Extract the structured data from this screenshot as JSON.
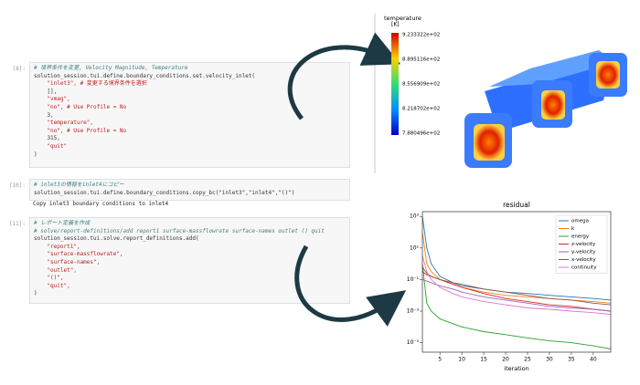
{
  "notebook": {
    "cells": [
      {
        "prompt": "[8]:",
        "lines": [
          "# 境界条件を変更, Velocity Magnitude, Temperature",
          "solution_session.tui.define.boundary_conditions.set.velocity_inlet(",
          "    \"inlet3\", # 変更する境界条件を選択",
          "    [],",
          "    \"vmag\",",
          "    \"no\", # Use Profile = No",
          "    3,",
          "    \"temperature\",",
          "    \"no\", # Use Profile = No",
          "    315,",
          "    \"quit\"",
          ")"
        ]
      },
      {
        "prompt": "[10]:",
        "lines": [
          "# inlet3の情報をinlet4にコピー",
          "solution_session.tui.define.boundary_conditions.copy_bc(\"inlet3\",\"inlet4\",\"()\")"
        ],
        "output": "Copy inlet3 boundary conditions to inlet4"
      },
      {
        "prompt": "[11]:",
        "lines": [
          "# レポート定義を作成",
          "# solve/report-definitions/add report1 surface-massflowrate surface-names outlet () quit",
          "solution_session.tui.solve.report_definitions.add(",
          "    \"report1\",",
          "    \"surface-massflowrate\",",
          "    \"surface-names\",",
          "    \"outlet\",",
          "    \"()\",",
          "    \"quit\",",
          ")"
        ]
      }
    ]
  },
  "render": {
    "colorbar_title": "temperature",
    "colorbar_unit": "[K]",
    "colorbar_labels": [
      "9.233322e+02",
      "8.895116e+02",
      "8.556909e+02",
      "8.218702e+02",
      "7.880496e+02"
    ]
  },
  "chart_data": {
    "type": "line",
    "title": "residual",
    "x_label": "iteration",
    "yscale": "log",
    "x": [
      1,
      2,
      3,
      5,
      8,
      10,
      15,
      20,
      25,
      30,
      35,
      40,
      44
    ],
    "xlim": [
      1,
      44
    ],
    "xticks": [
      5,
      10,
      15,
      20,
      25,
      30,
      35,
      40
    ],
    "ylim": [
      2.5e-06,
      2000.0
    ],
    "yticks": [
      {
        "value": 1000,
        "label": "10³"
      },
      {
        "value": 10,
        "label": "10¹"
      },
      {
        "value": 0.1,
        "label": "10⁻¹"
      },
      {
        "value": 0.001,
        "label": "10⁻³"
      },
      {
        "value": 1e-05,
        "label": "10⁻⁵"
      }
    ],
    "legend": "upper right",
    "series": [
      {
        "name": "omega",
        "color": "#1f77b4",
        "values": [
          1000,
          10,
          1,
          0.16,
          0.063,
          0.04,
          0.025,
          0.016,
          0.013,
          0.01,
          0.008,
          0.0063,
          0.005
        ]
      },
      {
        "name": "k",
        "color": "#ff7f0e",
        "values": [
          100,
          1,
          0.32,
          0.1,
          0.05,
          0.032,
          0.016,
          0.01,
          0.008,
          0.0063,
          0.005,
          0.004,
          0.0032
        ]
      },
      {
        "name": "energy",
        "color": "#2ca02c",
        "values": [
          1,
          0.0032,
          0.001,
          0.00032,
          0.00016,
          0.0001,
          5e-05,
          3.2e-05,
          2e-05,
          1.3e-05,
          1e-05,
          6.3e-06,
          4e-06
        ]
      },
      {
        "name": "z-velocity",
        "color": "#d62728",
        "values": [
          0.32,
          0.2,
          0.16,
          0.1,
          0.05,
          0.032,
          0.013,
          0.0063,
          0.004,
          0.0025,
          0.002,
          0.0013,
          0.001
        ]
      },
      {
        "name": "y-velocity",
        "color": "#9467bd",
        "values": [
          0.1,
          0.08,
          0.063,
          0.04,
          0.025,
          0.016,
          0.008,
          0.005,
          0.0032,
          0.002,
          0.0016,
          0.0013,
          0.001
        ]
      },
      {
        "name": "x-velocity",
        "color": "#8c564b",
        "values": [
          0.63,
          0.25,
          0.16,
          0.1,
          0.063,
          0.05,
          0.025,
          0.016,
          0.01,
          0.0063,
          0.005,
          0.0032,
          0.0025
        ]
      },
      {
        "name": "continuity",
        "color": "#e377c2",
        "values": [
          3.2,
          0.32,
          0.1,
          0.032,
          0.013,
          0.008,
          0.004,
          0.0025,
          0.0016,
          0.0013,
          0.001,
          0.0008,
          0.00063
        ]
      }
    ]
  }
}
